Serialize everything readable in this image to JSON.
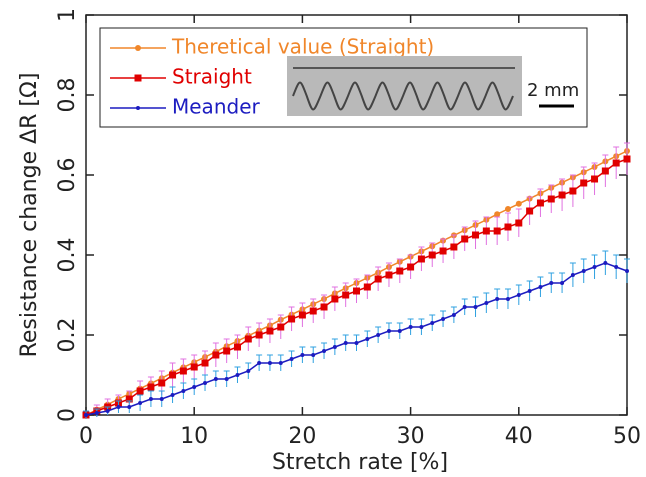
{
  "chart_data": {
    "type": "line",
    "x_label": "Stretch rate [%]",
    "y_label": "Resistance change ΔR [Ω]",
    "xlim": [
      0,
      50
    ],
    "xticks": [
      0,
      10,
      20,
      30,
      40,
      50
    ],
    "ylim": [
      0,
      1
    ],
    "yticks": [
      0,
      0.2,
      0.4,
      0.6,
      0.8,
      1
    ],
    "legend": "upper left",
    "inset_scale_label": "2 mm",
    "x": [
      0,
      1,
      2,
      3,
      4,
      5,
      6,
      7,
      8,
      9,
      10,
      11,
      12,
      13,
      14,
      15,
      16,
      17,
      18,
      19,
      20,
      21,
      22,
      23,
      24,
      25,
      26,
      27,
      28,
      29,
      30,
      31,
      32,
      33,
      34,
      35,
      36,
      37,
      38,
      39,
      40,
      41,
      42,
      43,
      44,
      45,
      46,
      47,
      48,
      49,
      50
    ],
    "series": [
      {
        "name": "Theretical value (Straight)",
        "color": "#f0862a",
        "marker": "circle",
        "values": [
          0,
          0.013,
          0.026,
          0.04,
          0.053,
          0.066,
          0.079,
          0.092,
          0.106,
          0.119,
          0.132,
          0.145,
          0.158,
          0.172,
          0.185,
          0.198,
          0.211,
          0.224,
          0.238,
          0.251,
          0.264,
          0.277,
          0.29,
          0.304,
          0.317,
          0.33,
          0.343,
          0.356,
          0.37,
          0.383,
          0.396,
          0.409,
          0.422,
          0.436,
          0.449,
          0.462,
          0.475,
          0.488,
          0.502,
          0.515,
          0.528,
          0.541,
          0.554,
          0.568,
          0.581,
          0.594,
          0.607,
          0.62,
          0.634,
          0.647,
          0.66
        ]
      },
      {
        "name": "Straight",
        "color": "#e00000",
        "marker": "square",
        "error_color": "#e070e0",
        "values": [
          0,
          0.01,
          0.02,
          0.03,
          0.04,
          0.06,
          0.07,
          0.08,
          0.1,
          0.11,
          0.12,
          0.13,
          0.15,
          0.16,
          0.17,
          0.19,
          0.2,
          0.21,
          0.22,
          0.24,
          0.25,
          0.26,
          0.27,
          0.29,
          0.3,
          0.31,
          0.32,
          0.34,
          0.35,
          0.36,
          0.37,
          0.39,
          0.4,
          0.41,
          0.42,
          0.44,
          0.45,
          0.46,
          0.46,
          0.47,
          0.48,
          0.51,
          0.53,
          0.54,
          0.55,
          0.56,
          0.58,
          0.59,
          0.61,
          0.63,
          0.64
        ],
        "errors": [
          0.01,
          0.015,
          0.02,
          0.02,
          0.02,
          0.025,
          0.025,
          0.03,
          0.03,
          0.03,
          0.03,
          0.03,
          0.03,
          0.03,
          0.03,
          0.03,
          0.03,
          0.03,
          0.03,
          0.03,
          0.03,
          0.03,
          0.03,
          0.03,
          0.03,
          0.03,
          0.03,
          0.03,
          0.03,
          0.03,
          0.03,
          0.03,
          0.03,
          0.03,
          0.03,
          0.03,
          0.035,
          0.035,
          0.035,
          0.035,
          0.035,
          0.035,
          0.035,
          0.035,
          0.04,
          0.04,
          0.04,
          0.04,
          0.04,
          0.04,
          0.04
        ]
      },
      {
        "name": "Meander",
        "color": "#1c1cc0",
        "marker": "dot",
        "error_color": "#2ea0e0",
        "values": [
          0,
          0.005,
          0.01,
          0.02,
          0.02,
          0.03,
          0.04,
          0.04,
          0.05,
          0.06,
          0.07,
          0.08,
          0.09,
          0.09,
          0.1,
          0.11,
          0.13,
          0.13,
          0.13,
          0.14,
          0.15,
          0.15,
          0.16,
          0.17,
          0.18,
          0.18,
          0.19,
          0.2,
          0.21,
          0.21,
          0.22,
          0.22,
          0.23,
          0.24,
          0.25,
          0.27,
          0.27,
          0.28,
          0.29,
          0.29,
          0.3,
          0.31,
          0.32,
          0.33,
          0.33,
          0.35,
          0.36,
          0.37,
          0.38,
          0.37,
          0.36
        ],
        "errors": [
          0.01,
          0.01,
          0.01,
          0.015,
          0.015,
          0.02,
          0.02,
          0.02,
          0.02,
          0.02,
          0.02,
          0.02,
          0.02,
          0.02,
          0.02,
          0.02,
          0.02,
          0.02,
          0.02,
          0.02,
          0.02,
          0.02,
          0.02,
          0.02,
          0.02,
          0.02,
          0.02,
          0.02,
          0.02,
          0.02,
          0.02,
          0.02,
          0.02,
          0.02,
          0.02,
          0.02,
          0.025,
          0.025,
          0.025,
          0.025,
          0.025,
          0.025,
          0.025,
          0.025,
          0.025,
          0.03,
          0.03,
          0.03,
          0.03,
          0.03,
          0.03
        ]
      }
    ]
  }
}
